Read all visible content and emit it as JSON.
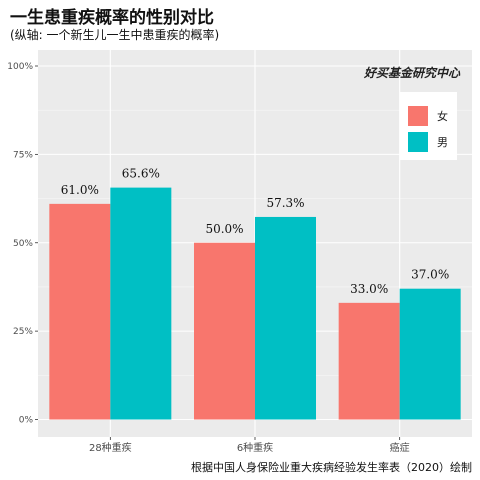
{
  "chart_data": {
    "type": "bar",
    "title": "一生患重疾概率的性别对比",
    "subtitle": "(纵轴: 一个新生儿一生中患重疾的概率)",
    "caption": "根据中国人身保险业重大疾病经验发生率表（2020）绘制",
    "watermark": "好买基金研究中心",
    "categories": [
      "28种重疾",
      "6种重疾",
      "癌症"
    ],
    "series": [
      {
        "name": "女",
        "values": [
          61.0,
          50.0,
          33.0
        ],
        "labels": [
          "61.0%",
          "50.0%",
          "33.0%"
        ],
        "color": "#F8766D"
      },
      {
        "name": "男",
        "values": [
          65.6,
          57.3,
          37.0
        ],
        "labels": [
          "65.6%",
          "57.3%",
          "37.0%"
        ],
        "color": "#00BFC4"
      }
    ],
    "ylim": [
      0,
      100
    ],
    "yticks": [
      0,
      25,
      50,
      75,
      100
    ],
    "ytick_labels": [
      "0%",
      "25%",
      "50%",
      "75%",
      "100%"
    ],
    "xlabel": "",
    "ylabel": "",
    "grid": true,
    "legend_position": "top-right",
    "panel_background": "#EBEBEB"
  }
}
